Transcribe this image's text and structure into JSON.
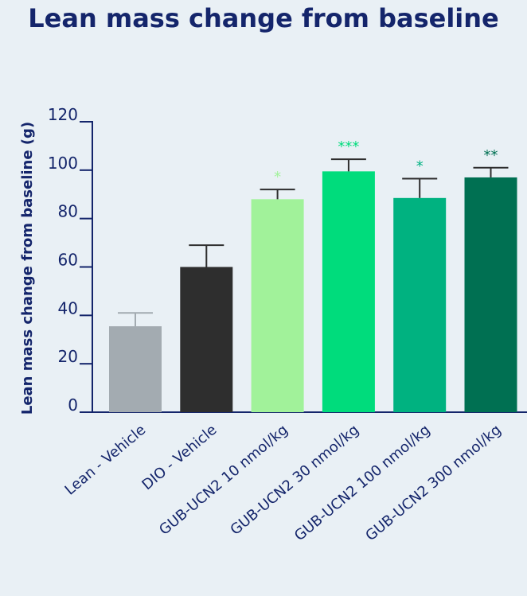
{
  "chart_data": {
    "type": "bar",
    "title": "Lean mass change from baseline",
    "ylabel": "Lean mass change from baseline (g)",
    "xlabel": "",
    "ylim": [
      0,
      120
    ],
    "yticks": [
      "0",
      "20",
      "40",
      "60",
      "80",
      "100",
      "120"
    ],
    "categories": [
      "Lean - Vehicle",
      "DIO - Vehicle",
      "GUB-UCN2 10 nmol/kg",
      "GUB-UCN2 30 nmol/kg",
      "GUB-UCN2 100 nmol/kg",
      "GUB-UCN2 300 nmol/kg"
    ],
    "values": [
      35.5,
      60,
      88,
      99.5,
      88.5,
      97
    ],
    "errors": [
      5.5,
      9,
      4,
      5,
      8,
      4
    ],
    "significance": [
      "",
      "",
      "*",
      "***",
      "*",
      "**"
    ],
    "colors": [
      "#a3abb1",
      "#2e2e2e",
      "#a1f29a",
      "#00dc7c",
      "#00b280",
      "#007052"
    ],
    "sig_colors": [
      "#a3abb1",
      "#2e2e2e",
      "#a1f29a",
      "#00dc7c",
      "#00b280",
      "#007052"
    ],
    "grid": false,
    "legend": "none"
  }
}
